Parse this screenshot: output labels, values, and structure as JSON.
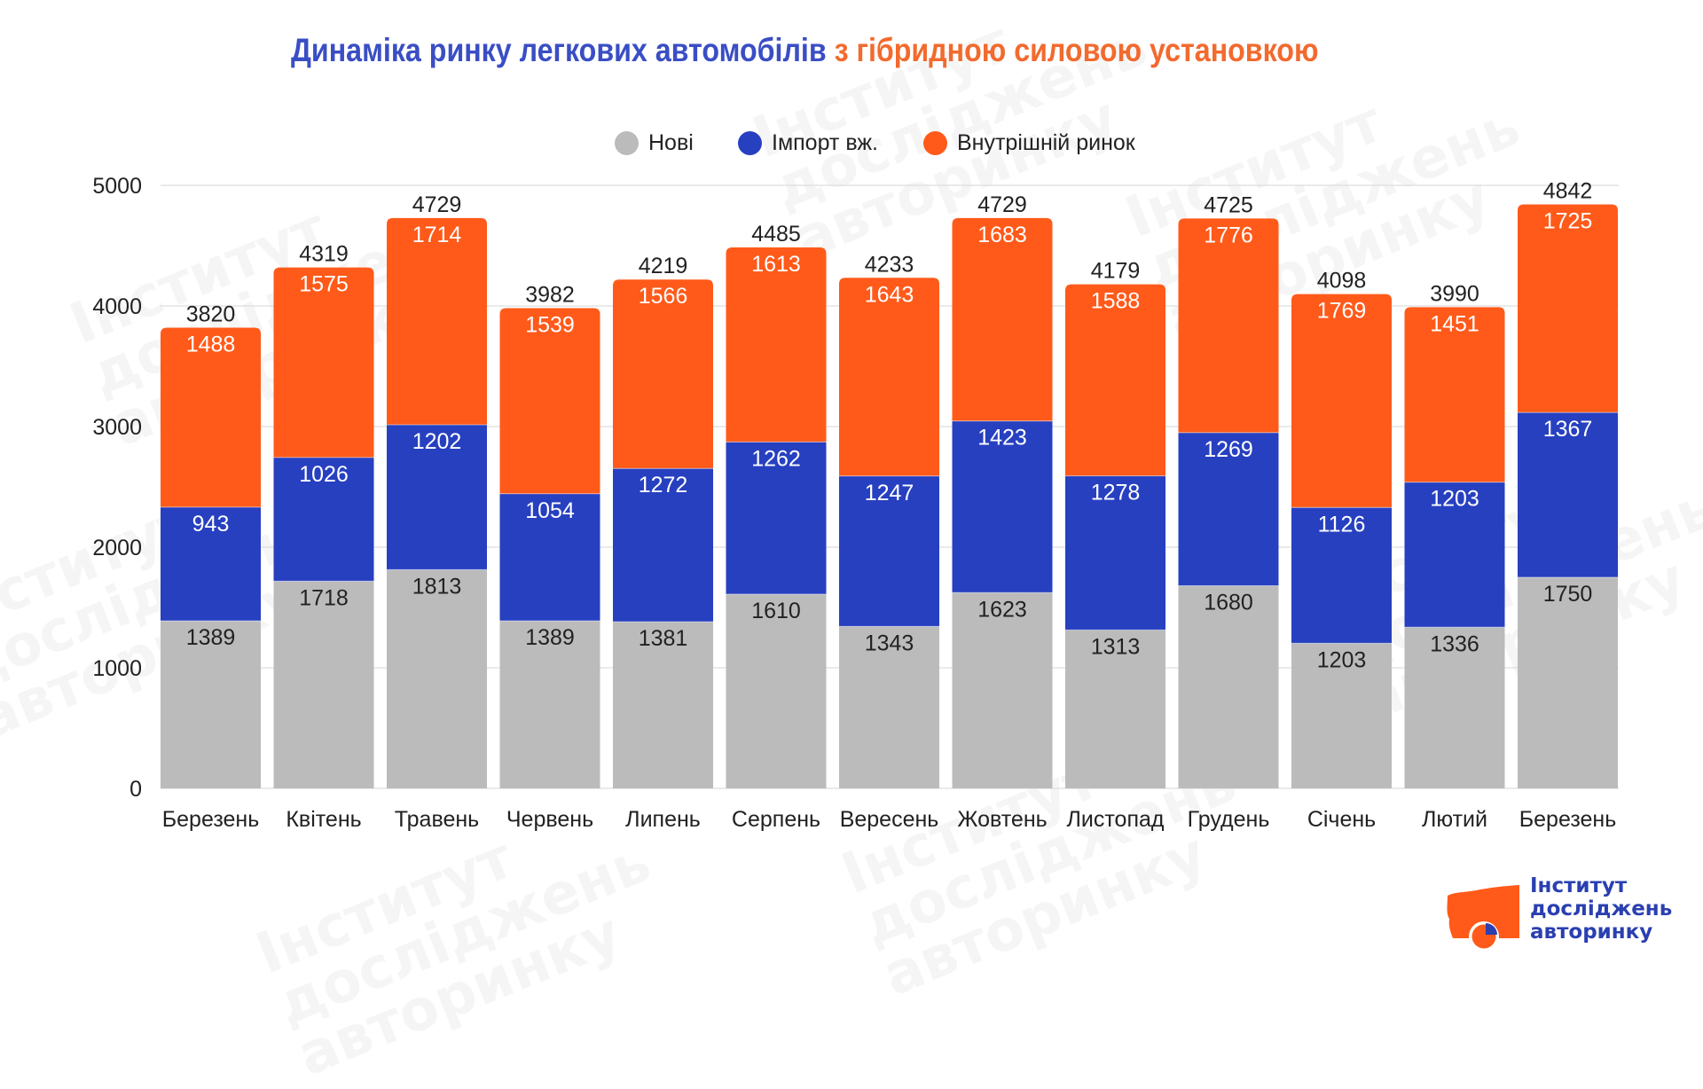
{
  "title": {
    "part1": "Динаміка ринку легкових автомобілів",
    "part2": "з гібридною силовою установкою"
  },
  "colors": {
    "title_blue": "#3a4ec4",
    "title_orange": "#f26a2e",
    "new": "#bbbbbb",
    "import": "#2740c0",
    "domestic": "#ff5a1a"
  },
  "logo": {
    "line1": "Інститут",
    "line2": "досліджень",
    "line3": "авторинку"
  },
  "chart_data": {
    "type": "bar",
    "stacked": true,
    "title": "Динаміка ринку легкових автомобілів з гібридною силовою установкою",
    "xlabel": "",
    "ylabel": "",
    "ylim": [
      0,
      5000
    ],
    "yticks": [
      0,
      1000,
      2000,
      3000,
      4000,
      5000
    ],
    "grid": true,
    "legend_position": "top-center",
    "categories": [
      "Березень",
      "Квітень",
      "Травень",
      "Червень",
      "Липень",
      "Серпень",
      "Вересень",
      "Жовтень",
      "Листопад",
      "Грудень",
      "Січень",
      "Лютий",
      "Березень"
    ],
    "series": [
      {
        "name": "Нові",
        "color": "#bbbbbb",
        "label_color": "#222222",
        "values": [
          1389,
          1718,
          1813,
          1389,
          1381,
          1610,
          1343,
          1623,
          1313,
          1680,
          1203,
          1336,
          1750
        ]
      },
      {
        "name": "Імпорт вж.",
        "color": "#2740c0",
        "label_color": "#ffffff",
        "values": [
          943,
          1026,
          1202,
          1054,
          1272,
          1262,
          1247,
          1423,
          1278,
          1269,
          1126,
          1203,
          1367
        ]
      },
      {
        "name": "Внутрішній ринок",
        "color": "#ff5a1a",
        "label_color": "#ffffff",
        "values": [
          1488,
          1575,
          1714,
          1539,
          1566,
          1613,
          1643,
          1683,
          1588,
          1776,
          1769,
          1451,
          1725
        ]
      }
    ],
    "totals": [
      3820,
      4319,
      4729,
      3982,
      4219,
      4485,
      4233,
      4729,
      4179,
      4725,
      4098,
      3990,
      4842
    ]
  }
}
